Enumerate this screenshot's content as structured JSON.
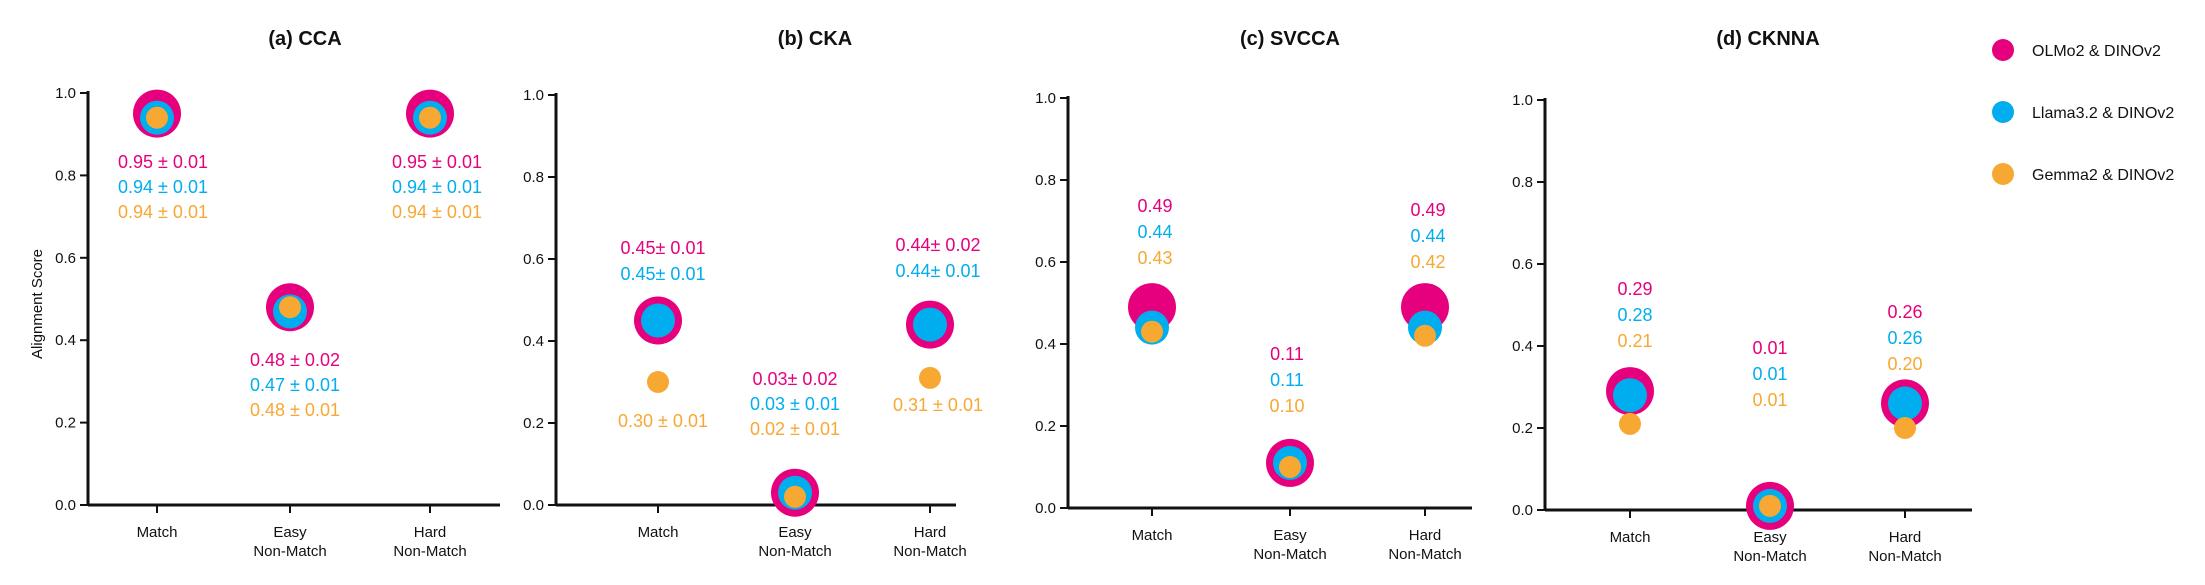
{
  "colors": {
    "olmo": "#e6007e",
    "llama": "#00aeef",
    "gemma": "#f7a833"
  },
  "legend": {
    "items": [
      {
        "key": "olmo",
        "label": "OLMo2 & DINOv2"
      },
      {
        "key": "llama",
        "label": "Llama3.2 & DINOv2"
      },
      {
        "key": "gemma",
        "label": "Gemma2 & DINOv2"
      }
    ]
  },
  "chart_data": [
    {
      "type": "scatter",
      "title": "(a) CCA",
      "ylabel": "Alignment Score",
      "ylim": [
        0.0,
        1.0
      ],
      "yticks": [
        "0.0",
        "0.2",
        "0.4",
        "0.6",
        "0.8",
        "1.0"
      ],
      "categories": [
        [
          "Match"
        ],
        [
          "Easy",
          "Non-Match"
        ],
        [
          "Hard",
          "Non-Match"
        ]
      ],
      "series": [
        {
          "key": "olmo",
          "name": "OLMo2 & DINOv2",
          "values": [
            0.95,
            0.48,
            0.95
          ],
          "labels": [
            "0.95 ± 0.01",
            "0.48 ± 0.02",
            "0.95 ± 0.01"
          ]
        },
        {
          "key": "llama",
          "name": "Llama3.2 & DINOv2",
          "values": [
            0.94,
            0.47,
            0.94
          ],
          "labels": [
            "0.94 ± 0.01",
            "0.47 ± 0.01",
            "0.94 ± 0.01"
          ]
        },
        {
          "key": "gemma",
          "name": "Gemma2 & DINOv2",
          "values": [
            0.94,
            0.48,
            0.94
          ],
          "labels": [
            "0.94 ± 0.01",
            "0.48 ± 0.01",
            "0.94 ± 0.01"
          ]
        }
      ]
    },
    {
      "type": "scatter",
      "title": "(b) CKA",
      "ylabel": "",
      "ylim": [
        0.0,
        1.0
      ],
      "yticks": [
        "0.0",
        "0.2",
        "0.4",
        "0.6",
        "0.8",
        "1.0"
      ],
      "categories": [
        [
          "Match"
        ],
        [
          "Easy",
          "Non-Match"
        ],
        [
          "Hard",
          "Non-Match"
        ]
      ],
      "series": [
        {
          "key": "olmo",
          "name": "OLMo2 & DINOv2",
          "values": [
            0.45,
            0.03,
            0.44
          ],
          "labels": [
            "0.45± 0.01",
            "0.03± 0.02",
            "0.44± 0.02"
          ]
        },
        {
          "key": "llama",
          "name": "Llama3.2 & DINOv2",
          "values": [
            0.45,
            0.03,
            0.44
          ],
          "labels": [
            "0.45± 0.01",
            "0.03 ± 0.01",
            "0.44± 0.01"
          ]
        },
        {
          "key": "gemma",
          "name": "Gemma2 & DINOv2",
          "values": [
            0.3,
            0.02,
            0.31
          ],
          "labels": [
            "0.30 ± 0.01",
            "0.02 ± 0.01",
            "0.31 ± 0.01"
          ]
        }
      ]
    },
    {
      "type": "scatter",
      "title": "(c) SVCCA",
      "ylabel": "",
      "ylim": [
        0.0,
        1.0
      ],
      "yticks": [
        "0.0",
        "0.2",
        "0.4",
        "0.6",
        "0.8",
        "1.0"
      ],
      "categories": [
        [
          "Match"
        ],
        [
          "Easy",
          "Non-Match"
        ],
        [
          "Hard",
          "Non-Match"
        ]
      ],
      "series": [
        {
          "key": "olmo",
          "name": "OLMo2 & DINOv2",
          "values": [
            0.49,
            0.11,
            0.49
          ],
          "labels": [
            "0.49",
            "0.11",
            "0.49"
          ]
        },
        {
          "key": "llama",
          "name": "Llama3.2 & DINOv2",
          "values": [
            0.44,
            0.11,
            0.44
          ],
          "labels": [
            "0.44",
            "0.11",
            "0.44"
          ]
        },
        {
          "key": "gemma",
          "name": "Gemma2 & DINOv2",
          "values": [
            0.43,
            0.1,
            0.42
          ],
          "labels": [
            "0.43",
            "0.10",
            "0.42"
          ]
        }
      ]
    },
    {
      "type": "scatter",
      "title": "(d) CKNNA",
      "ylabel": "",
      "ylim": [
        0.0,
        1.0
      ],
      "yticks": [
        "0.0",
        "0.2",
        "0.4",
        "0.6",
        "0.8",
        "1.0"
      ],
      "categories": [
        [
          "Match"
        ],
        [
          "Easy",
          "Non-Match"
        ],
        [
          "Hard",
          "Non-Match"
        ]
      ],
      "series": [
        {
          "key": "olmo",
          "name": "OLMo2 & DINOv2",
          "values": [
            0.29,
            0.01,
            0.26
          ],
          "labels": [
            "0.29",
            "0.01",
            "0.26"
          ]
        },
        {
          "key": "llama",
          "name": "Llama3.2 & DINOv2",
          "values": [
            0.28,
            0.01,
            0.26
          ],
          "labels": [
            "0.28",
            "0.01",
            "0.26"
          ]
        },
        {
          "key": "gemma",
          "name": "Gemma2 & DINOv2",
          "values": [
            0.21,
            0.01,
            0.2
          ],
          "labels": [
            "0.21",
            "0.01",
            "0.20"
          ]
        }
      ]
    }
  ]
}
